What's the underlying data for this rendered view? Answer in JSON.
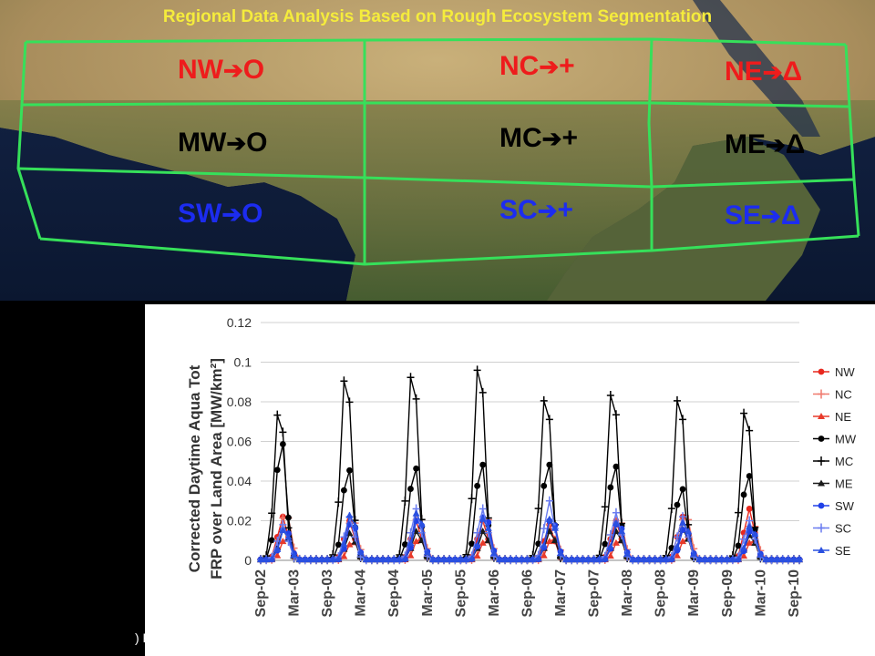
{
  "map": {
    "title": "Regional Data Analysis Based on Rough Ecosystem Segmentation",
    "colors": {
      "grid": "#36e05a",
      "north": "#ee1c1c",
      "middle": "#000000",
      "south": "#1c2cf0",
      "title": "#f5ec3c"
    },
    "regions": [
      {
        "code": "NW",
        "symbol": "O",
        "band": "north"
      },
      {
        "code": "NC",
        "symbol": "+",
        "band": "north"
      },
      {
        "code": "NE",
        "symbol": "Δ",
        "band": "north"
      },
      {
        "code": "MW",
        "symbol": "O",
        "band": "middle"
      },
      {
        "code": "MC",
        "symbol": "+",
        "band": "middle"
      },
      {
        "code": "ME",
        "symbol": "Δ",
        "band": "middle"
      },
      {
        "code": "SW",
        "symbol": "O",
        "band": "south"
      },
      {
        "code": "SC",
        "symbol": "+",
        "band": "south"
      },
      {
        "code": "SE",
        "symbol": "Δ",
        "band": "south"
      }
    ]
  },
  "footer": {
    "note": ") RSE"
  },
  "chart_data": {
    "type": "line",
    "ylabel": "Corrected Daytime Aqua Tot FRP over Land Area [MW/km²]",
    "ylim": [
      0,
      0.12
    ],
    "yticks": [
      "0",
      "0.02",
      "0.04",
      "0.06",
      "0.08",
      "0.1",
      "0.12"
    ],
    "xticks": [
      "Sep-02",
      "Mar-03",
      "Sep-03",
      "Mar-04",
      "Sep-04",
      "Mar-05",
      "Sep-05",
      "Mar-06",
      "Sep-06",
      "Mar-07",
      "Sep-07",
      "Mar-08",
      "Sep-08",
      "Mar-09",
      "Sep-09",
      "Mar-10",
      "Sep-10"
    ],
    "x_start": "2002-09",
    "x_end": "2010-10",
    "grid": "horizontal",
    "legend_position": "right",
    "series": [
      {
        "name": "NW",
        "color": "#e8281e",
        "marker": "circle",
        "peaks": [
          0.022,
          0.02,
          0.02,
          0.02,
          0.018,
          0.02,
          0.022,
          0.026
        ]
      },
      {
        "name": "NC",
        "color": "#f07a6e",
        "marker": "plus",
        "peaks": [
          0.025,
          0.022,
          0.024,
          0.024,
          0.021,
          0.022,
          0.024,
          0.02
        ]
      },
      {
        "name": "NE",
        "color": "#e83a2a",
        "marker": "triangle",
        "peaks": [
          0.012,
          0.01,
          0.012,
          0.011,
          0.012,
          0.011,
          0.012,
          0.011
        ]
      },
      {
        "name": "MW",
        "color": "#000000",
        "marker": "circle",
        "peaks": [
          0.062,
          0.048,
          0.049,
          0.051,
          0.051,
          0.05,
          0.038,
          0.045
        ]
      },
      {
        "name": "MC",
        "color": "#000000",
        "marker": "plus",
        "peaks": [
          0.081,
          0.1,
          0.102,
          0.106,
          0.089,
          0.092,
          0.089,
          0.082
        ]
      },
      {
        "name": "ME",
        "color": "#1a1a1a",
        "marker": "triangle",
        "peaks": [
          0.016,
          0.014,
          0.015,
          0.015,
          0.015,
          0.015,
          0.016,
          0.013
        ]
      },
      {
        "name": "SW",
        "color": "#2040e8",
        "marker": "circle",
        "peaks": [
          0.017,
          0.02,
          0.022,
          0.024,
          0.022,
          0.02,
          0.017,
          0.016
        ]
      },
      {
        "name": "SC",
        "color": "#6a7cf0",
        "marker": "plus",
        "peaks": [
          0.018,
          0.022,
          0.026,
          0.026,
          0.03,
          0.024,
          0.022,
          0.02
        ]
      },
      {
        "name": "SE",
        "color": "#2a50e0",
        "marker": "triangle",
        "peaks": [
          0.016,
          0.024,
          0.025,
          0.022,
          0.022,
          0.02,
          0.02,
          0.018
        ]
      }
    ]
  }
}
